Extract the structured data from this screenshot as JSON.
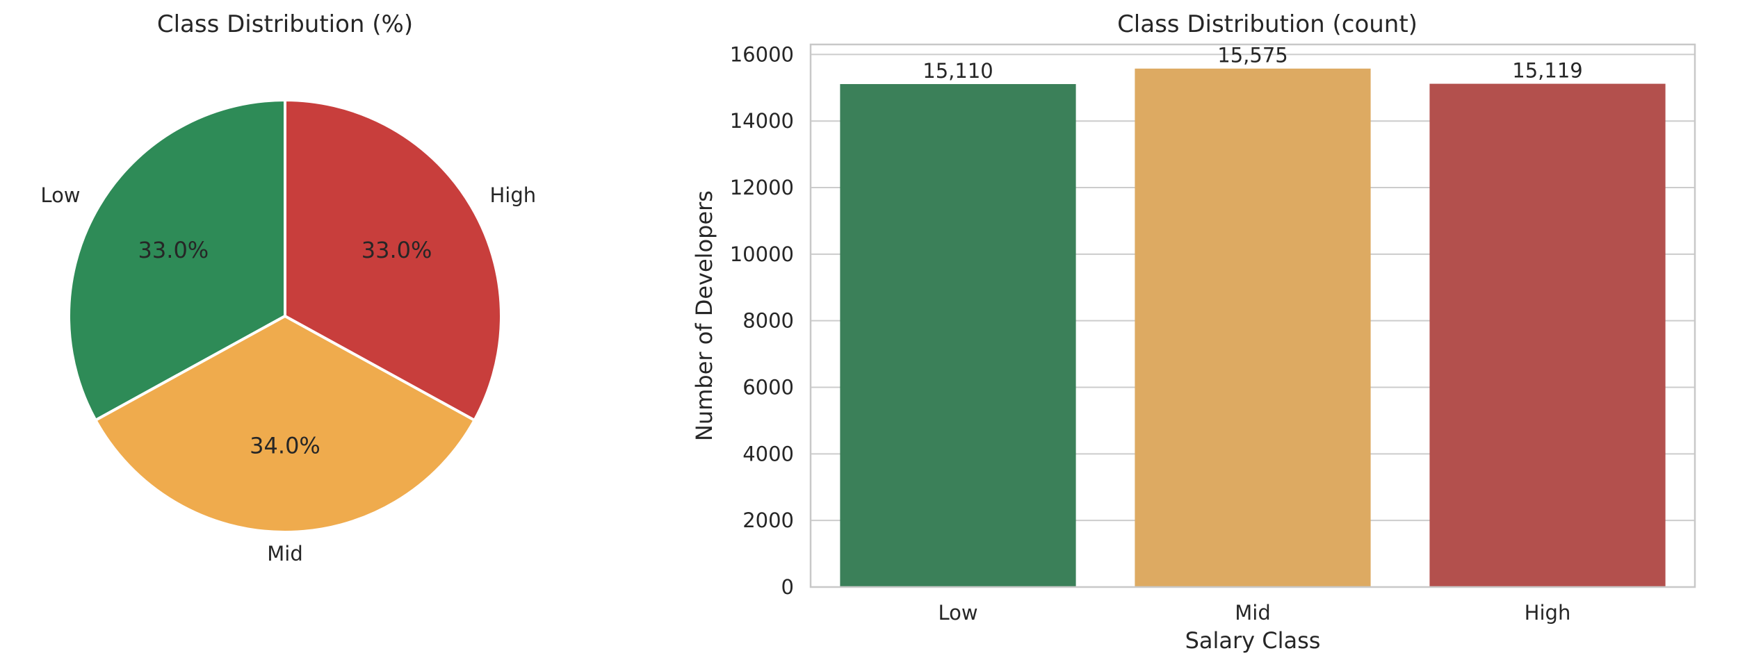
{
  "chart_data": [
    {
      "type": "pie",
      "title": "Class Distribution (%)",
      "categories": [
        "Low",
        "Mid",
        "High"
      ],
      "values": [
        33.0,
        34.0,
        33.0
      ],
      "value_labels": [
        "33.0%",
        "34.0%",
        "33.0%"
      ],
      "colors": [
        "#2e8b57",
        "#efab4d",
        "#c83e3c"
      ]
    },
    {
      "type": "bar",
      "title": "Class Distribution (count)",
      "categories": [
        "Low",
        "Mid",
        "High"
      ],
      "values": [
        15110,
        15575,
        15119
      ],
      "value_labels": [
        "15,110",
        "15,575",
        "15,119"
      ],
      "colors": [
        "#3b8059",
        "#ddaa62",
        "#b3504d"
      ],
      "xlabel": "Salary Class",
      "ylabel": "Number of Developers",
      "ylim": [
        0,
        16300
      ],
      "yticks": [
        0,
        2000,
        4000,
        6000,
        8000,
        10000,
        12000,
        14000,
        16000
      ],
      "grid": true
    }
  ]
}
